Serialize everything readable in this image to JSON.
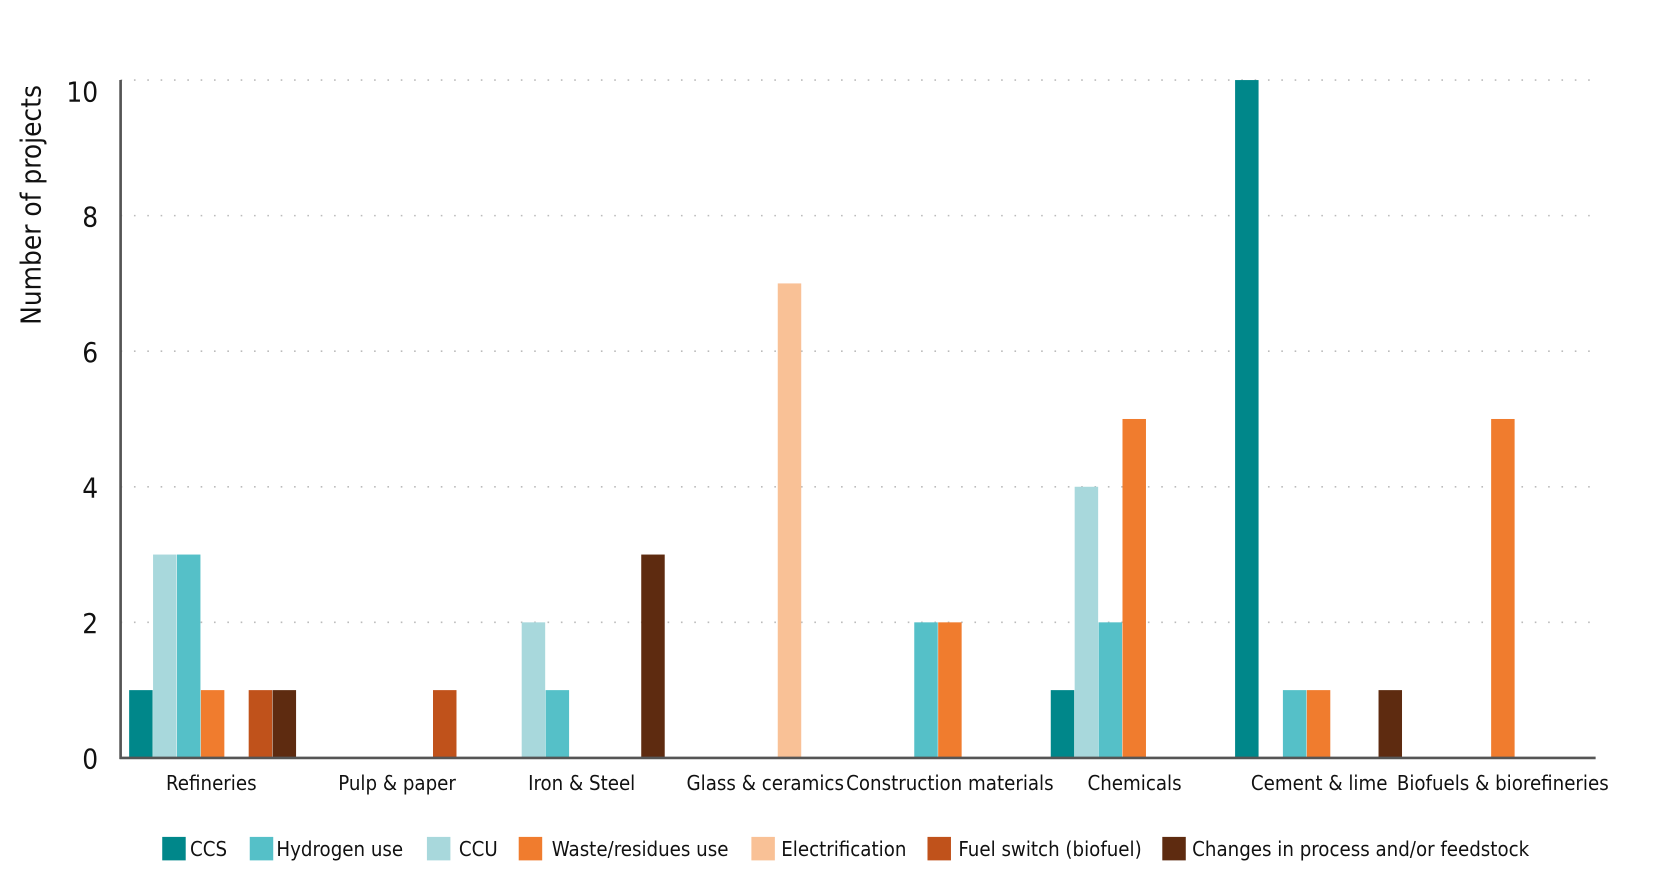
{
  "chart_data": {
    "type": "bar",
    "title": "",
    "xlabel": "",
    "ylabel": "Number of projects",
    "ylim": [
      0,
      10
    ],
    "yticks": [
      0,
      2,
      4,
      6,
      8,
      10
    ],
    "grid": "horizontal dotted",
    "legend_position": "bottom",
    "categories": [
      "Refineries",
      "Pulp & paper",
      "Iron & Steel",
      "Glass & ceramics",
      "Construction materials",
      "Chemicals",
      "Cement & lime",
      "Biofuels & biorefineries"
    ],
    "series": [
      {
        "name": "CCS",
        "color": "#00878a",
        "values": [
          1,
          0,
          0,
          0,
          0,
          1,
          10,
          0
        ]
      },
      {
        "name": "Hydrogen use",
        "color": "#55c0c8",
        "values": [
          3,
          0,
          1,
          0,
          2,
          2,
          1,
          0
        ]
      },
      {
        "name": "CCU",
        "color": "#a8d8dc",
        "values": [
          3,
          0,
          2,
          0,
          0,
          4,
          0,
          0
        ]
      },
      {
        "name": "Waste/residues use",
        "color": "#f07c2e",
        "values": [
          1,
          0,
          0,
          0,
          2,
          5,
          1,
          5
        ]
      },
      {
        "name": "Electrification",
        "color": "#f9c196",
        "values": [
          0,
          0,
          0,
          7,
          0,
          0,
          0,
          0
        ]
      },
      {
        "name": "Fuel switch (biofuel)",
        "color": "#c0521b",
        "values": [
          1,
          1,
          0,
          0,
          0,
          0,
          0,
          0
        ]
      },
      {
        "name": "Changes in process and/or feedstock",
        "color": "#5e2b10",
        "values": [
          1,
          0,
          3,
          0,
          0,
          0,
          1,
          0
        ]
      }
    ]
  }
}
